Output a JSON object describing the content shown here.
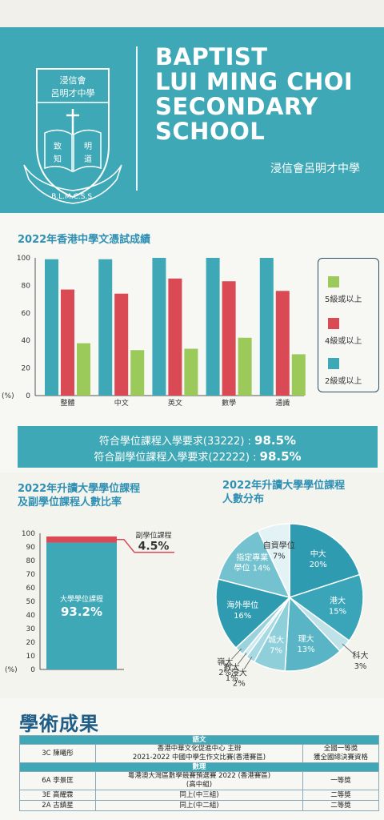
{
  "school": {
    "name_lines": [
      "BAPTIST",
      "LUI MING CHOI",
      "SECONDARY",
      "SCHOOL"
    ],
    "name_zh": "浸信會呂明才中學",
    "crest_text_top_1": "浸信會",
    "crest_text_top_2": "呂明才中學",
    "crest_motto": [
      "致",
      "明",
      "知",
      "道"
    ],
    "crest_ribbon": "B.L.M.C.S.S."
  },
  "colors": {
    "teal": "#3fa8b6",
    "red": "#d94a55",
    "green": "#9bc95a",
    "navy": "#2a4f66",
    "title_blue": "#2e8fb3"
  },
  "chart_data": [
    {
      "type": "bar",
      "title": "2022年香港中學文憑試成績",
      "categories": [
        "整體",
        "中文",
        "英文",
        "數學",
        "通識"
      ],
      "series": [
        {
          "name": "2級或以上",
          "values": [
            99,
            99,
            100,
            100,
            100
          ]
        },
        {
          "name": "4級或以上",
          "values": [
            77,
            74,
            85,
            83,
            76
          ]
        },
        {
          "name": "5級或以上",
          "values": [
            38,
            33,
            34,
            42,
            30
          ]
        }
      ],
      "ylim": [
        0,
        100
      ],
      "yticks": [
        0,
        20,
        40,
        60,
        80,
        100
      ],
      "y_unit_label": "(%)",
      "legend_position": "right"
    },
    {
      "type": "bar",
      "title_lines": [
        "2022年升讀大學學位課程",
        "及副學位課程人數比率"
      ],
      "stacked": true,
      "series": [
        {
          "name": "大學學位課程",
          "value": 93.2,
          "label": "93.2%"
        },
        {
          "name": "副學位課程",
          "value": 4.5,
          "label": "4.5%"
        }
      ],
      "ylim": [
        0,
        100
      ],
      "yticks": [
        0,
        10,
        20,
        30,
        40,
        50,
        60,
        70,
        80,
        90,
        100
      ],
      "y_unit_label": "(%)"
    },
    {
      "type": "pie",
      "title_lines": [
        "2022年升讀大學學位課程",
        "人數分布"
      ],
      "slices": [
        {
          "name": "中大",
          "value": 20,
          "label": "20%"
        },
        {
          "name": "港大",
          "value": 15,
          "label": "15%"
        },
        {
          "name": "科大",
          "value": 3,
          "label": "3%"
        },
        {
          "name": "理大",
          "value": 13,
          "label": "13%"
        },
        {
          "name": "城大",
          "value": 7,
          "label": "7%"
        },
        {
          "name": "浸大",
          "value": 2,
          "label": "2%"
        },
        {
          "name": "教大",
          "value": 1,
          "label": "1%"
        },
        {
          "name": "嶺大",
          "value": 2,
          "label": "2%"
        },
        {
          "name": "海外學位",
          "value": 16,
          "label": "16%"
        },
        {
          "name": "指定專業學位",
          "value": 14,
          "label": "14%"
        },
        {
          "name": "自資學位",
          "value": 7,
          "label": "7%"
        }
      ]
    }
  ],
  "requirements": {
    "line1_text": "符合學位課程入學要求(33222) : ",
    "line1_value": "98.5%",
    "line2_text": "符合副學位課程入學要求(22222) : ",
    "line2_value": "98.5%"
  },
  "academic": {
    "title": "學術成果",
    "rows": [
      {
        "type": "header",
        "text": "語文"
      },
      {
        "type": "entry",
        "student": "3C 陳曦彤",
        "event_lines": [
          "香港中華文化促進中心 主辦",
          "2021-2022 中國中學生作文比賽(香港賽區)"
        ],
        "award_lines": [
          "全國一等獎",
          "獲全國總決賽資格"
        ]
      },
      {
        "type": "header",
        "text": "數理"
      },
      {
        "type": "entry",
        "student": "6A 李景匡",
        "event_lines": [
          "粵港澳大灣區數學競賽預選賽 2022 (香港賽區)",
          "(高中組)"
        ],
        "award_lines": [
          "一等獎"
        ]
      },
      {
        "type": "entry",
        "student": "3E 高耀霖",
        "event_lines": [
          "同上(中三組)"
        ],
        "award_lines": [
          "二等獎"
        ]
      },
      {
        "type": "entry",
        "student": "2A 古鎮星",
        "event_lines": [
          "同上(中二組)"
        ],
        "award_lines": [
          "二等獎"
        ]
      }
    ]
  }
}
